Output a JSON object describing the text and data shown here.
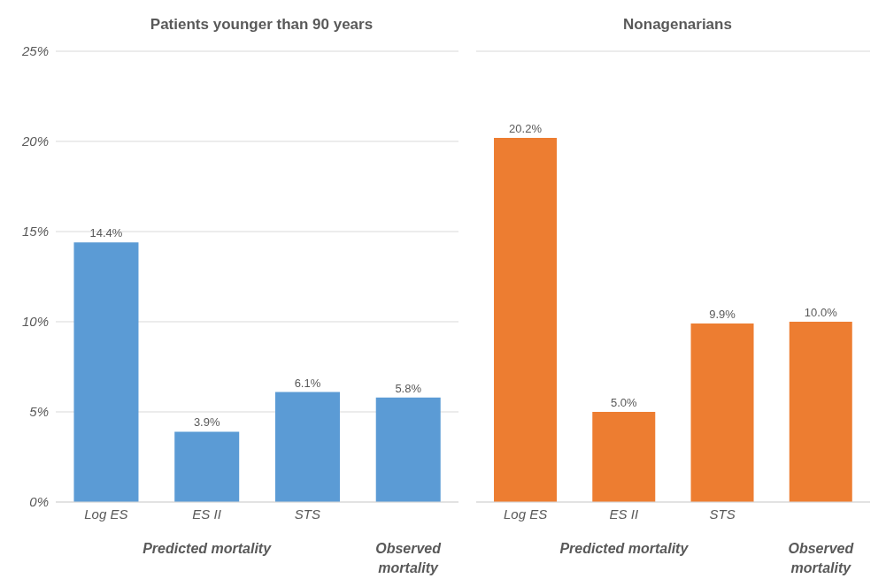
{
  "chart_data": [
    {
      "type": "bar",
      "title": "Patients younger than 90 years",
      "categories": [
        "Log ES",
        "ES II",
        "STS",
        null
      ],
      "values": [
        14.4,
        3.9,
        6.1,
        5.8
      ],
      "colors": [
        "#5b9bd5",
        "#5b9bd5",
        "#5b9bd5",
        "#5b9bd5"
      ],
      "value_labels": [
        "14.4%",
        "3.9%",
        "6.1%",
        "5.8%"
      ],
      "ylim": [
        0,
        25
      ],
      "yticks": [
        {
          "value": 0,
          "label": "0%"
        },
        {
          "value": 5,
          "label": "5%"
        },
        {
          "value": 10,
          "label": "10%"
        },
        {
          "value": 15,
          "label": "15%"
        },
        {
          "value": 20,
          "label": "20%"
        },
        {
          "value": 25,
          "label": "25%"
        }
      ],
      "grid": "y",
      "annotations": [
        "Predicted mortality",
        "Observed mortality"
      ]
    },
    {
      "type": "bar",
      "title": "Nonagenarians",
      "categories": [
        "Log ES",
        "ES II",
        "STS",
        null
      ],
      "values": [
        20.2,
        5.0,
        9.9,
        10.0
      ],
      "colors": [
        "#ed7d31",
        "#ed7d31",
        "#ed7d31",
        "#ed7d31"
      ],
      "value_labels": [
        "20.2%",
        "5.0%",
        "9.9%",
        "10.0%"
      ],
      "ylim": [
        0,
        25
      ],
      "yticks": [
        {
          "value": 0,
          "label": null
        },
        {
          "value": 5,
          "label": null
        },
        {
          "value": 10,
          "label": null
        },
        {
          "value": 15,
          "label": null
        },
        {
          "value": 20,
          "label": null
        },
        {
          "value": 25,
          "label": null
        }
      ],
      "grid": "y",
      "tick_labels": "x",
      "annotations": [
        "Predicted mortality",
        "Observed mortality"
      ]
    }
  ]
}
